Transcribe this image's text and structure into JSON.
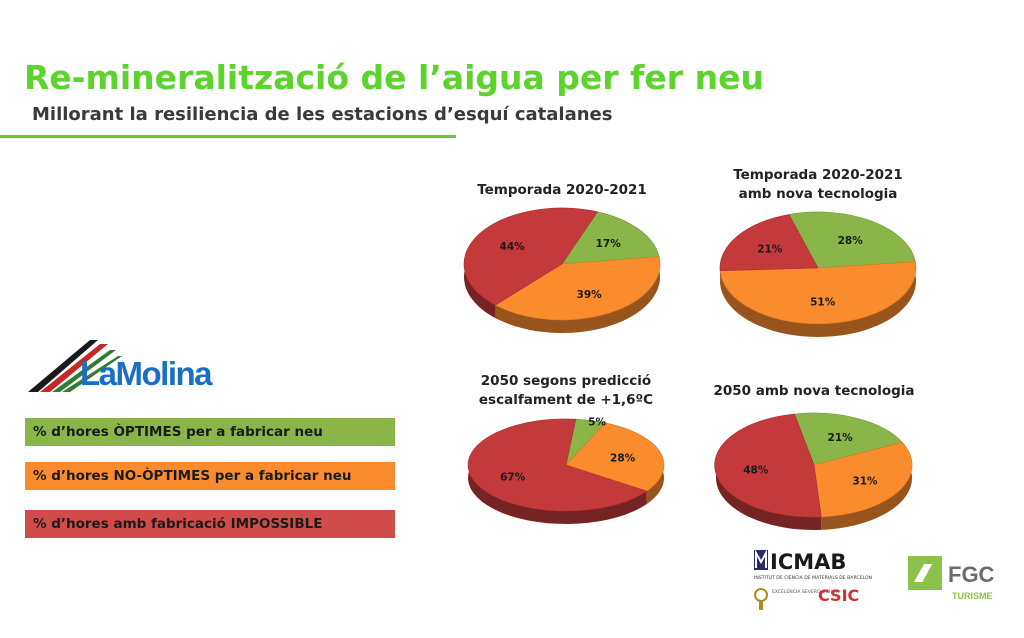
{
  "header": {
    "title": "Re-mineralització de l’aigua per fer neu",
    "subtitle": "Millorant la resiliencia de les estacions d’esquí catalanes"
  },
  "brand": {
    "name": "LaMolina"
  },
  "legend": [
    {
      "label": "% d’hores ÒPTIMES per a fabricar neu",
      "color": "#8ab548"
    },
    {
      "label": "% d’hores NO-ÒPTIMES per a fabricar neu",
      "color": "#fb8c2e"
    },
    {
      "label": "% d’hores amb fabricació IMPOSSIBLE",
      "color": "#c94545"
    }
  ],
  "colors": {
    "optimes": "#8ab548",
    "no_optimes": "#fb8c2e",
    "impossible": "#c43a3a",
    "title_green": "#5dd32d"
  },
  "chart_data": [
    {
      "type": "pie",
      "title": "Temporada 2020-2021",
      "slices": [
        {
          "category": "optimes",
          "value": 17,
          "label": "17%"
        },
        {
          "category": "no_optimes",
          "value": 39,
          "label": "39%"
        },
        {
          "category": "impossible",
          "value": 44,
          "label": "44%"
        }
      ]
    },
    {
      "type": "pie",
      "title": "Temporada 2020-2021\namb nova tecnologia",
      "slices": [
        {
          "category": "optimes",
          "value": 28,
          "label": "28%"
        },
        {
          "category": "no_optimes",
          "value": 51,
          "label": "51%"
        },
        {
          "category": "impossible",
          "value": 21,
          "label": "21%"
        }
      ]
    },
    {
      "type": "pie",
      "title": "2050 segons predicció\nescalfament de +1,6ºC",
      "slices": [
        {
          "category": "optimes",
          "value": 5,
          "label": "5%"
        },
        {
          "category": "no_optimes",
          "value": 28,
          "label": "28%"
        },
        {
          "category": "impossible",
          "value": 67,
          "label": "67%"
        }
      ]
    },
    {
      "type": "pie",
      "title": "2050 amb nova tecnologia",
      "slices": [
        {
          "category": "optimes",
          "value": 21,
          "label": "21%"
        },
        {
          "category": "no_optimes",
          "value": 31,
          "label": "31%"
        },
        {
          "category": "impossible",
          "value": 48,
          "label": "48%"
        }
      ]
    }
  ],
  "logos": {
    "icmab": {
      "name": "ICMAB",
      "caption": "INSTITUT DE CIÈNCIA DE MATERIALS DE BARCELONA",
      "severo": "EXCELENCIA SEVERO OCHOA",
      "csic": "CSIC"
    },
    "fgc": {
      "name": "FGC",
      "caption": "TURISME"
    }
  }
}
